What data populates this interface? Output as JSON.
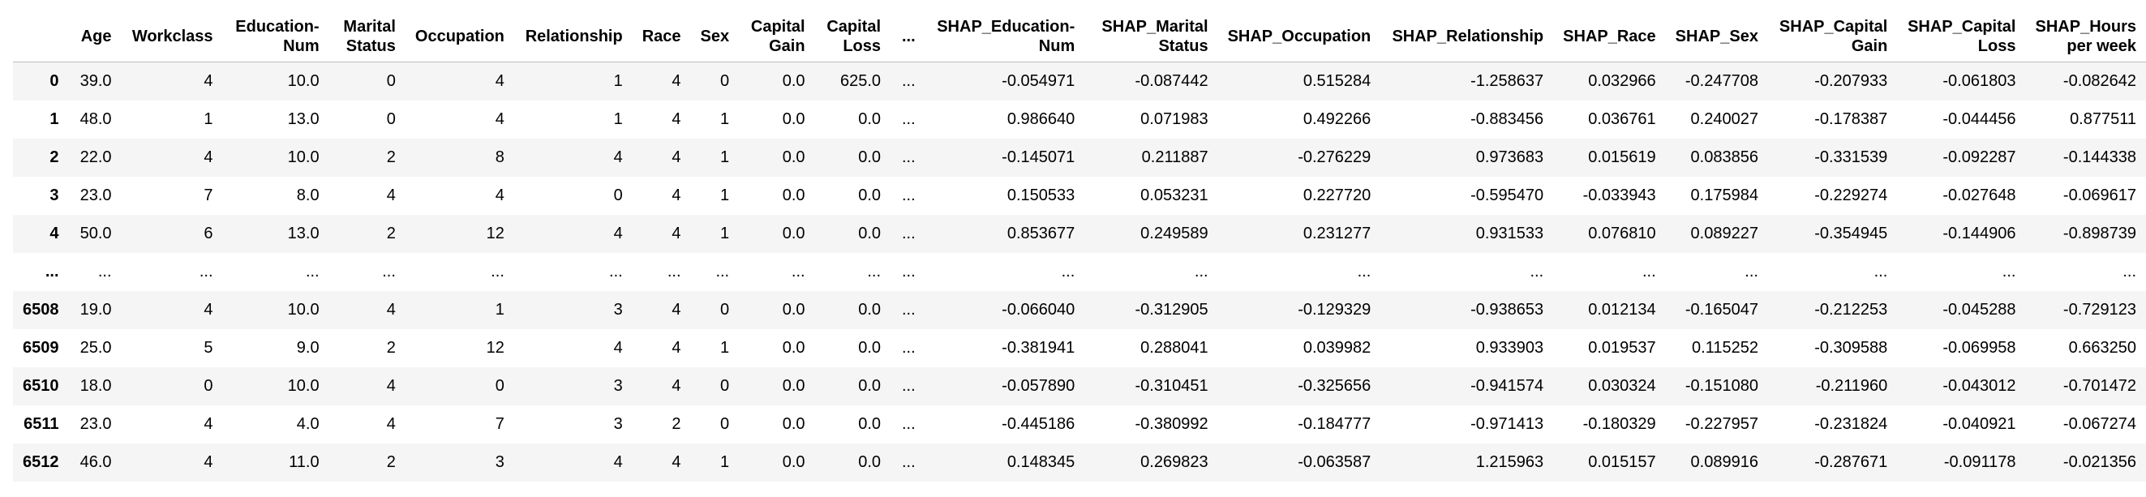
{
  "columns": [
    {
      "lines": [
        ""
      ]
    },
    {
      "lines": [
        "Age"
      ]
    },
    {
      "lines": [
        "Workclass"
      ]
    },
    {
      "lines": [
        "Education-",
        "Num"
      ]
    },
    {
      "lines": [
        "Marital",
        "Status"
      ]
    },
    {
      "lines": [
        "Occupation"
      ]
    },
    {
      "lines": [
        "Relationship"
      ]
    },
    {
      "lines": [
        "Race"
      ]
    },
    {
      "lines": [
        "Sex"
      ]
    },
    {
      "lines": [
        "Capital",
        "Gain"
      ]
    },
    {
      "lines": [
        "Capital",
        "Loss"
      ]
    },
    {
      "lines": [
        "..."
      ]
    },
    {
      "lines": [
        "SHAP_Education-",
        "Num"
      ]
    },
    {
      "lines": [
        "SHAP_Marital",
        "Status"
      ]
    },
    {
      "lines": [
        "SHAP_Occupation"
      ]
    },
    {
      "lines": [
        "SHAP_Relationship"
      ]
    },
    {
      "lines": [
        "SHAP_Race"
      ]
    },
    {
      "lines": [
        "SHAP_Sex"
      ]
    },
    {
      "lines": [
        "SHAP_Capital",
        "Gain"
      ]
    },
    {
      "lines": [
        "SHAP_Capital",
        "Loss"
      ]
    },
    {
      "lines": [
        "SHAP_Hours",
        "per week"
      ]
    }
  ],
  "rows": [
    [
      "0",
      "39.0",
      "4",
      "10.0",
      "0",
      "4",
      "1",
      "4",
      "0",
      "0.0",
      "625.0",
      "...",
      "-0.054971",
      "-0.087442",
      "0.515284",
      "-1.258637",
      "0.032966",
      "-0.247708",
      "-0.207933",
      "-0.061803",
      "-0.082642"
    ],
    [
      "1",
      "48.0",
      "1",
      "13.0",
      "0",
      "4",
      "1",
      "4",
      "1",
      "0.0",
      "0.0",
      "...",
      "0.986640",
      "0.071983",
      "0.492266",
      "-0.883456",
      "0.036761",
      "0.240027",
      "-0.178387",
      "-0.044456",
      "0.877511"
    ],
    [
      "2",
      "22.0",
      "4",
      "10.0",
      "2",
      "8",
      "4",
      "4",
      "1",
      "0.0",
      "0.0",
      "...",
      "-0.145071",
      "0.211887",
      "-0.276229",
      "0.973683",
      "0.015619",
      "0.083856",
      "-0.331539",
      "-0.092287",
      "-0.144338"
    ],
    [
      "3",
      "23.0",
      "7",
      "8.0",
      "4",
      "4",
      "0",
      "4",
      "1",
      "0.0",
      "0.0",
      "...",
      "0.150533",
      "0.053231",
      "0.227720",
      "-0.595470",
      "-0.033943",
      "0.175984",
      "-0.229274",
      "-0.027648",
      "-0.069617"
    ],
    [
      "4",
      "50.0",
      "6",
      "13.0",
      "2",
      "12",
      "4",
      "4",
      "1",
      "0.0",
      "0.0",
      "...",
      "0.853677",
      "0.249589",
      "0.231277",
      "0.931533",
      "0.076810",
      "0.089227",
      "-0.354945",
      "-0.144906",
      "-0.898739"
    ],
    [
      "...",
      "...",
      "...",
      "...",
      "...",
      "...",
      "...",
      "...",
      "...",
      "...",
      "...",
      "...",
      "...",
      "...",
      "...",
      "...",
      "...",
      "...",
      "...",
      "...",
      "..."
    ],
    [
      "6508",
      "19.0",
      "4",
      "10.0",
      "4",
      "1",
      "3",
      "4",
      "0",
      "0.0",
      "0.0",
      "...",
      "-0.066040",
      "-0.312905",
      "-0.129329",
      "-0.938653",
      "0.012134",
      "-0.165047",
      "-0.212253",
      "-0.045288",
      "-0.729123"
    ],
    [
      "6509",
      "25.0",
      "5",
      "9.0",
      "2",
      "12",
      "4",
      "4",
      "1",
      "0.0",
      "0.0",
      "...",
      "-0.381941",
      "0.288041",
      "0.039982",
      "0.933903",
      "0.019537",
      "0.115252",
      "-0.309588",
      "-0.069958",
      "0.663250"
    ],
    [
      "6510",
      "18.0",
      "0",
      "10.0",
      "4",
      "0",
      "3",
      "4",
      "0",
      "0.0",
      "0.0",
      "...",
      "-0.057890",
      "-0.310451",
      "-0.325656",
      "-0.941574",
      "0.030324",
      "-0.151080",
      "-0.211960",
      "-0.043012",
      "-0.701472"
    ],
    [
      "6511",
      "23.0",
      "4",
      "4.0",
      "4",
      "7",
      "3",
      "2",
      "0",
      "0.0",
      "0.0",
      "...",
      "-0.445186",
      "-0.380992",
      "-0.184777",
      "-0.971413",
      "-0.180329",
      "-0.227957",
      "-0.231824",
      "-0.040921",
      "-0.067274"
    ],
    [
      "6512",
      "46.0",
      "4",
      "11.0",
      "2",
      "3",
      "4",
      "4",
      "1",
      "0.0",
      "0.0",
      "...",
      "0.148345",
      "0.269823",
      "-0.063587",
      "1.215963",
      "0.015157",
      "0.089916",
      "-0.287671",
      "-0.091178",
      "-0.021356"
    ]
  ]
}
